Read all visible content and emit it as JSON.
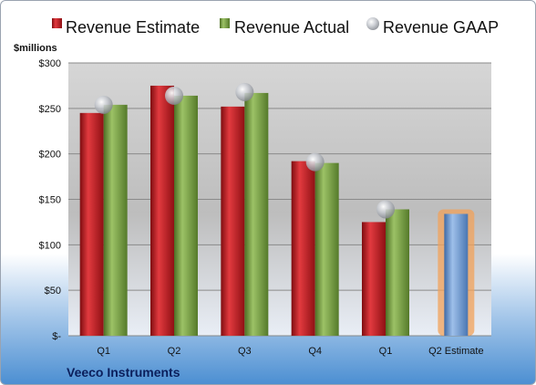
{
  "chart_data": {
    "type": "bar",
    "unit_label": "$millions",
    "company": "Veeco Instruments",
    "categories": [
      "Q1",
      "Q2",
      "Q3",
      "Q4",
      "Q1",
      "Q2 Estimate"
    ],
    "ylim": [
      0,
      300
    ],
    "yticks": [
      0,
      50,
      100,
      150,
      200,
      250,
      300
    ],
    "ytick_labels": [
      "$-",
      "$50",
      "$100",
      "$150",
      "$200",
      "$250",
      "$300"
    ],
    "grid": true,
    "legend_position": "top",
    "series": [
      {
        "name": "Revenue Estimate",
        "color": "#c0161c",
        "values": [
          245,
          275,
          252,
          192,
          125,
          null
        ]
      },
      {
        "name": "Revenue Actual",
        "color": "#6f9a3a",
        "values": [
          254,
          264,
          267,
          190,
          139,
          134
        ]
      },
      {
        "name": "Revenue GAAP",
        "color": "#b9bcc2",
        "values": [
          254,
          264,
          268,
          191,
          139,
          null
        ]
      }
    ],
    "highlight": {
      "category_index": 5,
      "series": "Revenue Actual",
      "bar_color": "#6f97cf",
      "glow_color": "#f2a25a"
    }
  }
}
